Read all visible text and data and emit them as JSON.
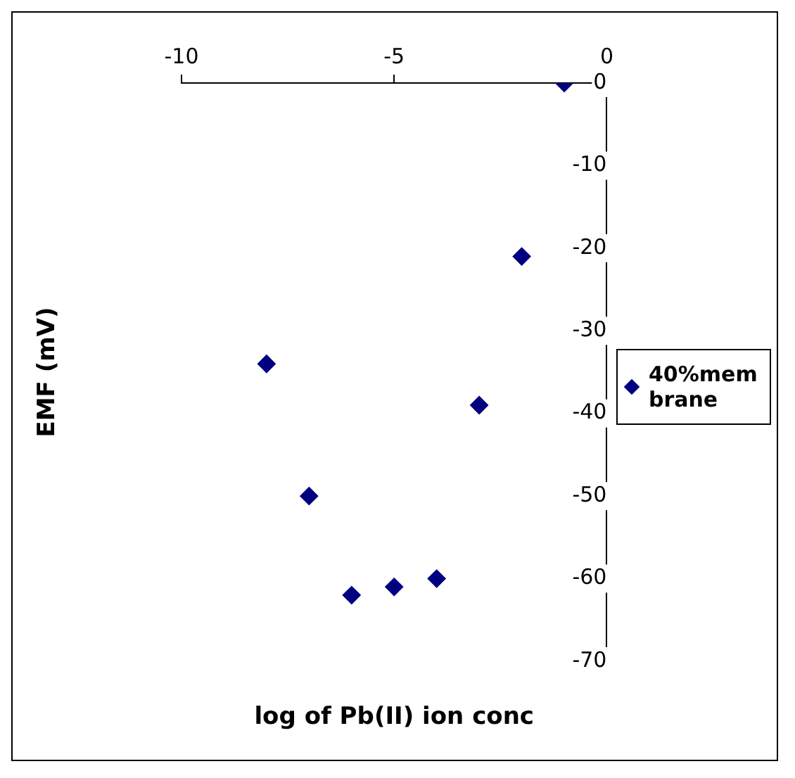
{
  "chart_data": {
    "type": "scatter",
    "xlabel": "log of Pb(II) ion conc",
    "ylabel": "EMF (mV)",
    "x": [
      -8,
      -7,
      -6,
      -5,
      -4,
      -3,
      -2,
      -1
    ],
    "series": [
      {
        "name": "40%membrane",
        "color": "#000080",
        "values": [
          -34,
          -50,
          -62,
          -61,
          -60,
          -39,
          -21,
          0
        ]
      }
    ],
    "xlim": [
      -10,
      0
    ],
    "xticks": [
      -10,
      -5,
      0
    ],
    "ylim": [
      -70,
      0
    ],
    "yticks": [
      -70,
      -60,
      -50,
      -40,
      -30,
      -20,
      -10,
      0
    ],
    "marker": "diamond",
    "legend": "right",
    "grid": false
  }
}
